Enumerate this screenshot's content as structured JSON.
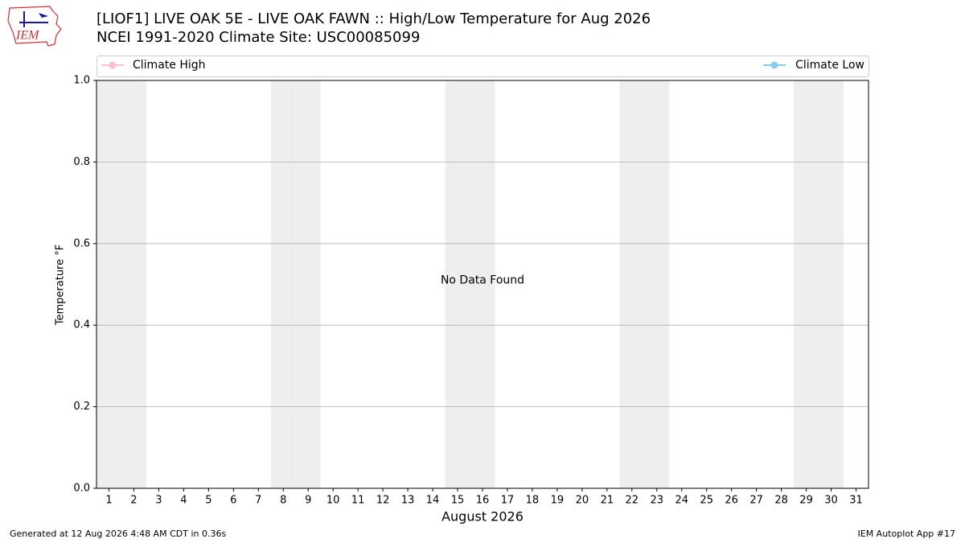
{
  "logo": {
    "text": "IEM"
  },
  "chart_data": {
    "type": "line",
    "title": "[LIOF1] LIVE OAK 5E - LIVE OAK FAWN :: High/Low Temperature for Aug 2026",
    "subtitle": "NCEI 1991-2020 Climate Site: USC00085099",
    "xlabel": "August 2026",
    "ylabel": "Temperature °F",
    "annotation": "No Data Found",
    "x": [
      1,
      2,
      3,
      4,
      5,
      6,
      7,
      8,
      9,
      10,
      11,
      12,
      13,
      14,
      15,
      16,
      17,
      18,
      19,
      20,
      21,
      22,
      23,
      24,
      25,
      26,
      27,
      28,
      29,
      30,
      31
    ],
    "series": [
      {
        "name": "Climate High",
        "color": "pink",
        "values": [
          null,
          null,
          null,
          null,
          null,
          null,
          null,
          null,
          null,
          null,
          null,
          null,
          null,
          null,
          null,
          null,
          null,
          null,
          null,
          null,
          null,
          null,
          null,
          null,
          null,
          null,
          null,
          null,
          null,
          null,
          null
        ]
      },
      {
        "name": "Climate Low",
        "color": "skyblue",
        "values": [
          null,
          null,
          null,
          null,
          null,
          null,
          null,
          null,
          null,
          null,
          null,
          null,
          null,
          null,
          null,
          null,
          null,
          null,
          null,
          null,
          null,
          null,
          null,
          null,
          null,
          null,
          null,
          null,
          null,
          null,
          null
        ]
      }
    ],
    "shaded_days": [
      1,
      2,
      8,
      9,
      15,
      16,
      22,
      23,
      29,
      30
    ],
    "shade_color": "#eeeeee",
    "xlim": [
      0.5,
      31.5
    ],
    "xticks": [
      1,
      2,
      3,
      4,
      5,
      6,
      7,
      8,
      9,
      10,
      11,
      12,
      13,
      14,
      15,
      16,
      17,
      18,
      19,
      20,
      21,
      22,
      23,
      24,
      25,
      26,
      27,
      28,
      29,
      30,
      31
    ],
    "ylim": [
      0,
      1
    ],
    "yticks": [
      {
        "value": 0,
        "label": "0.0"
      },
      {
        "value": 0.2,
        "label": "0.2"
      },
      {
        "value": 0.4,
        "label": "0.4"
      },
      {
        "value": 0.6,
        "label": "0.6"
      },
      {
        "value": 0.8,
        "label": "0.8"
      },
      {
        "value": 1,
        "label": "1.0"
      }
    ],
    "grid": "y"
  },
  "footer": {
    "left": "Generated at 12 Aug 2026 4:48 AM CDT in 0.36s",
    "right": "IEM Autoplot App #17"
  }
}
